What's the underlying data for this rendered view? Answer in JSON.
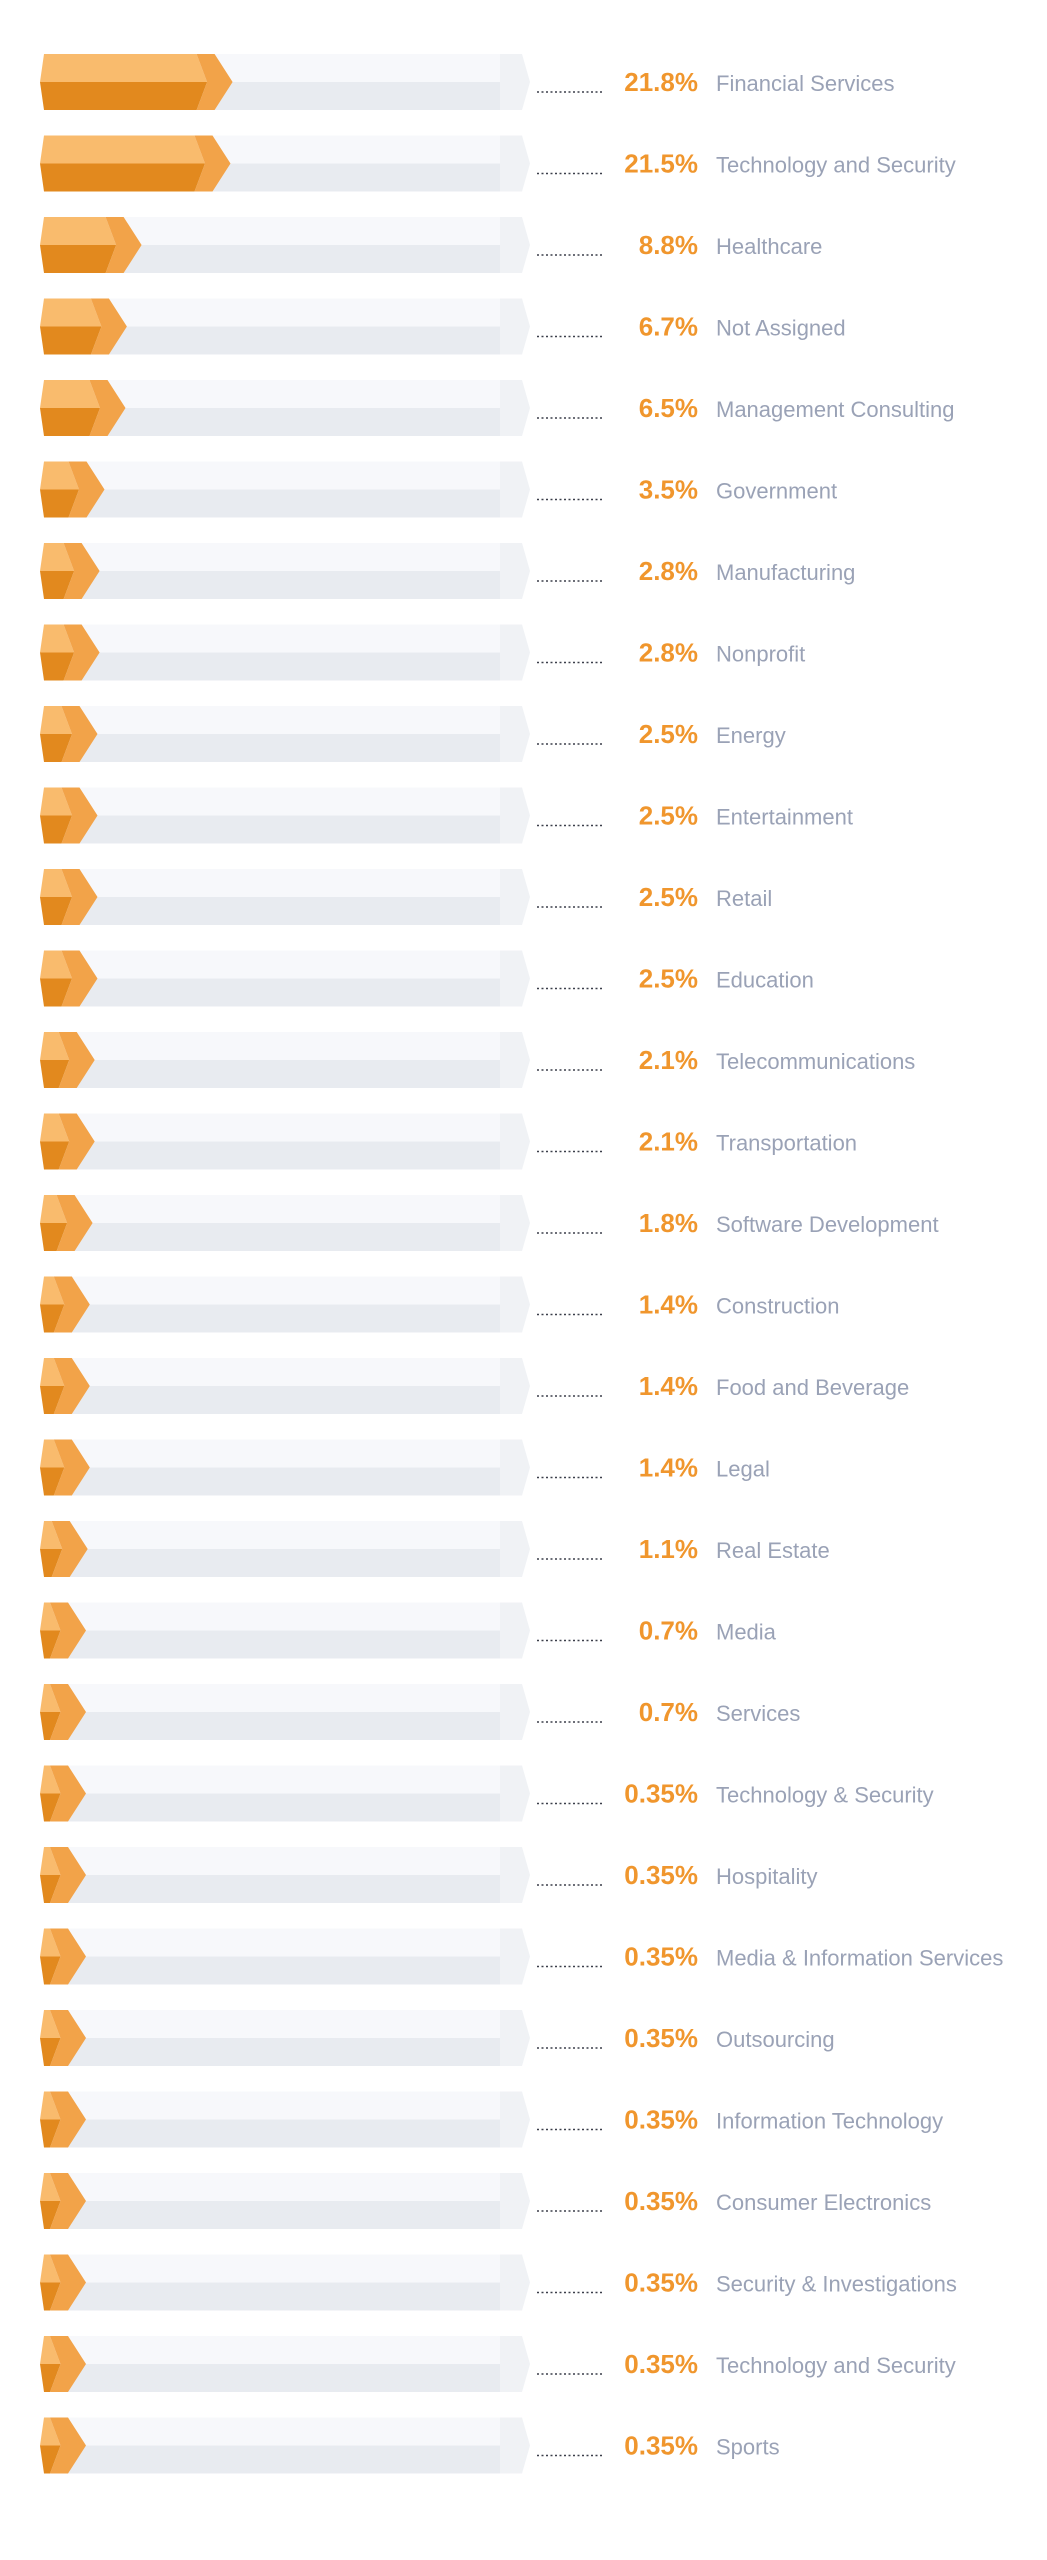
{
  "chart_data": {
    "type": "bar",
    "orientation": "horizontal",
    "xlim": [
      0,
      100
    ],
    "grid": false,
    "colors": {
      "bar": "#f2a349",
      "value_label": "#f0962d",
      "category_label": "#9aa2b6",
      "track": "#e8ebf0"
    },
    "categories": [
      "Financial Services",
      "Technology and Security",
      "Healthcare",
      "Not Assigned",
      "Management Consulting",
      "Government",
      "Manufacturing",
      "Nonprofit",
      "Energy",
      "Entertainment",
      "Retail",
      "Education",
      "Telecommunications",
      "Transportation",
      "Software Development",
      "Construction",
      "Food and Beverage",
      "Legal",
      "Real Estate",
      "Media",
      "Services",
      "Technology & Security",
      "Hospitality",
      "Media & Information Services",
      "Outsourcing",
      "Information Technology",
      "Consumer Electronics",
      "Security & Investigations",
      "Technology and Security",
      "Sports"
    ],
    "values": [
      21.8,
      21.5,
      8.8,
      6.7,
      6.5,
      3.5,
      2.8,
      2.8,
      2.5,
      2.5,
      2.5,
      2.5,
      2.1,
      2.1,
      1.8,
      1.4,
      1.4,
      1.4,
      1.1,
      0.7,
      0.7,
      0.35,
      0.35,
      0.35,
      0.35,
      0.35,
      0.35,
      0.35,
      0.35,
      0.35
    ],
    "value_labels": [
      "21.8%",
      "21.5%",
      "8.8%",
      "6.7%",
      "6.5%",
      "3.5%",
      "2.8%",
      "2.8%",
      "2.5%",
      "2.5%",
      "2.5%",
      "2.5%",
      "2.1%",
      "2.1%",
      "1.8%",
      "1.4%",
      "1.4%",
      "1.4%",
      "1.1%",
      "0.7%",
      "0.7%",
      "0.35%",
      "0.35%",
      "0.35%",
      "0.35%",
      "0.35%",
      "0.35%",
      "0.35%",
      "0.35%",
      "0.35%"
    ]
  }
}
